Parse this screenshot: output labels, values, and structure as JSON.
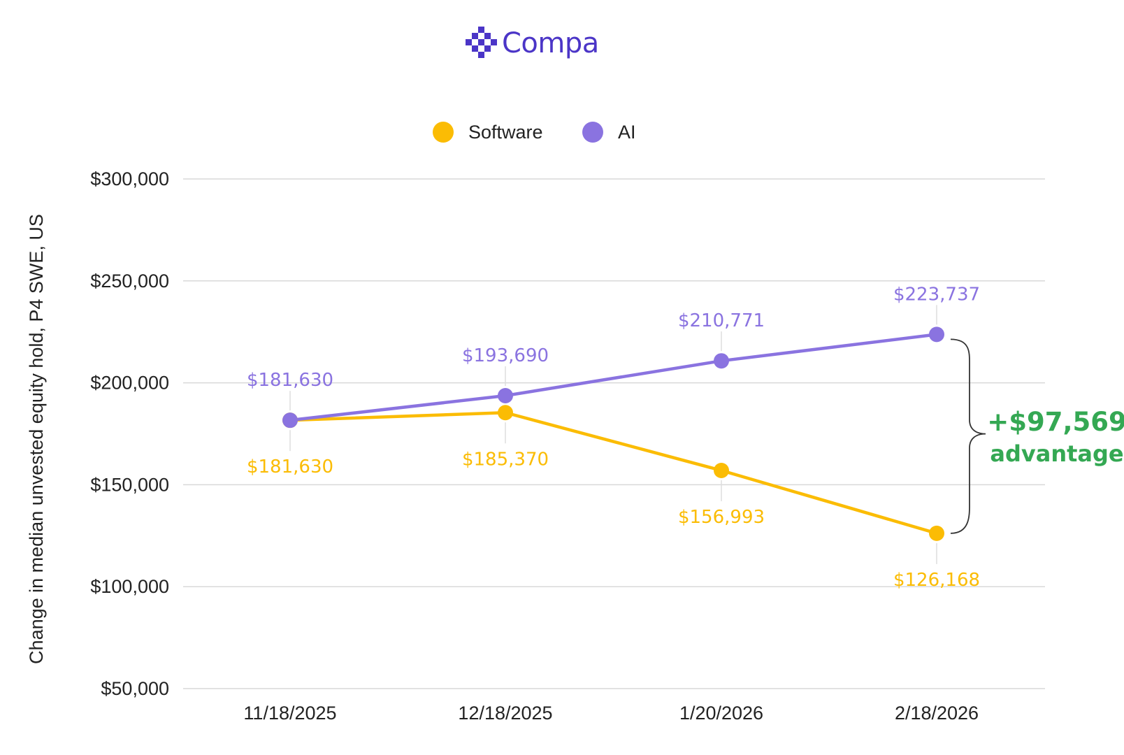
{
  "brand": {
    "name": "Compa",
    "color": "#4b35c7"
  },
  "colors": {
    "software": "#fbbc04",
    "ai": "#8a73e0",
    "advantage": "#34a853",
    "grid": "#d9d9d9"
  },
  "callout": {
    "value": "+$97,569",
    "label": "advantage"
  },
  "chart_data": {
    "type": "line",
    "title": "",
    "xlabel": "",
    "ylabel": "Change in median unvested equity hold, P4 SWE, US",
    "ylim": [
      50000,
      300000
    ],
    "yticks": [
      50000,
      100000,
      150000,
      200000,
      250000,
      300000
    ],
    "ytick_labels": [
      "$50,000",
      "$100,000",
      "$150,000",
      "$200,000",
      "$250,000",
      "$300,000"
    ],
    "categories": [
      "11/18/2025",
      "12/18/2025",
      "1/20/2026",
      "2/18/2026"
    ],
    "legend_position": "top-center",
    "grid": true,
    "series": [
      {
        "name": "Software",
        "values": [
          181630,
          185370,
          156993,
          126168
        ],
        "labels": [
          "$181,630",
          "$185,370",
          "$156,993",
          "$126,168"
        ],
        "label_side": "below"
      },
      {
        "name": "AI",
        "values": [
          181630,
          193690,
          210771,
          223737
        ],
        "labels": [
          "$181,630",
          "$193,690",
          "$210,771",
          "$223,737"
        ],
        "label_side": "above"
      }
    ]
  }
}
